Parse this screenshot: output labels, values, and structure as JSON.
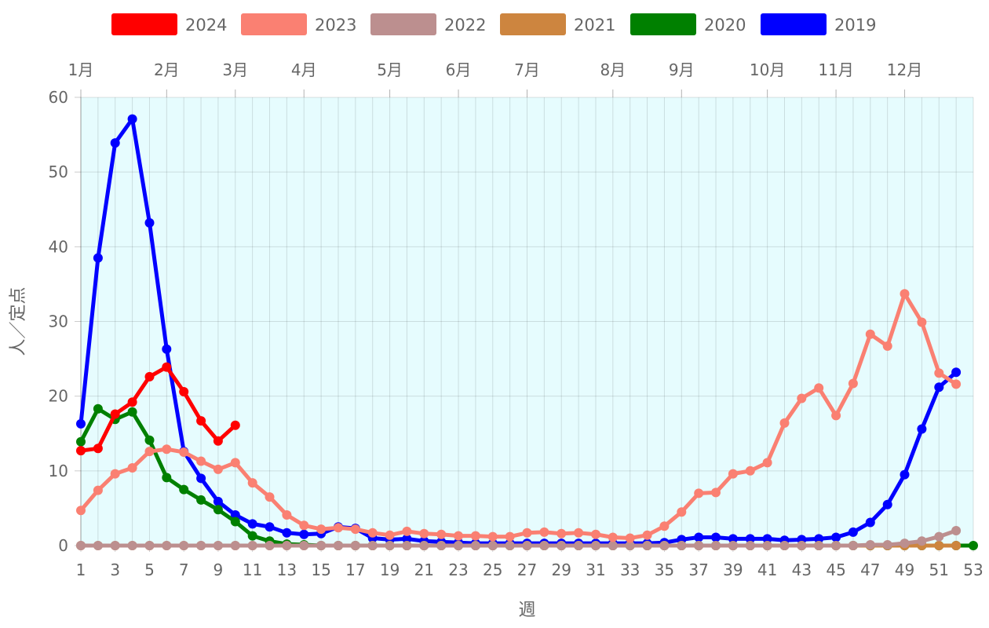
{
  "chart_data": {
    "type": "line",
    "xlabel": "週",
    "ylabel": "人／定点",
    "xlim": [
      1,
      53
    ],
    "ylim": [
      0,
      60
    ],
    "x_ticks": [
      1,
      3,
      5,
      7,
      9,
      11,
      13,
      15,
      17,
      19,
      21,
      23,
      25,
      27,
      29,
      31,
      33,
      35,
      37,
      39,
      41,
      43,
      45,
      47,
      49,
      51,
      53
    ],
    "y_ticks": [
      0,
      10,
      20,
      30,
      40,
      50,
      60
    ],
    "grid": true,
    "plot_background": "#e6fcfe",
    "legend_position": "top",
    "months": [
      {
        "label": "1月",
        "week": 1
      },
      {
        "label": "2月",
        "week": 6
      },
      {
        "label": "3月",
        "week": 10
      },
      {
        "label": "4月",
        "week": 14
      },
      {
        "label": "5月",
        "week": 19
      },
      {
        "label": "6月",
        "week": 23
      },
      {
        "label": "7月",
        "week": 27
      },
      {
        "label": "8月",
        "week": 32
      },
      {
        "label": "9月",
        "week": 36
      },
      {
        "label": "10月",
        "week": 41
      },
      {
        "label": "11月",
        "week": 45
      },
      {
        "label": "12月",
        "week": 49
      }
    ],
    "series": [
      {
        "name": "2024",
        "color": "#ff0000",
        "x": [
          1,
          2,
          3,
          4,
          5,
          6,
          7,
          8,
          9,
          10
        ],
        "values": [
          12.7,
          13.0,
          17.6,
          19.2,
          22.6,
          23.9,
          20.6,
          16.7,
          14.0,
          16.1
        ]
      },
      {
        "name": "2023",
        "color": "#fa8072",
        "x": [
          1,
          2,
          3,
          4,
          5,
          6,
          7,
          8,
          9,
          10,
          11,
          12,
          13,
          14,
          15,
          16,
          17,
          18,
          19,
          20,
          21,
          22,
          23,
          24,
          25,
          26,
          27,
          28,
          29,
          30,
          31,
          32,
          33,
          34,
          35,
          36,
          37,
          38,
          39,
          40,
          41,
          42,
          43,
          44,
          45,
          46,
          47,
          48,
          49,
          50,
          51,
          52
        ],
        "values": [
          4.7,
          7.4,
          9.6,
          10.4,
          12.6,
          12.9,
          12.5,
          11.3,
          10.2,
          11.1,
          8.4,
          6.5,
          4.1,
          2.7,
          2.2,
          2.4,
          2.2,
          1.7,
          1.4,
          1.9,
          1.6,
          1.5,
          1.3,
          1.3,
          1.2,
          1.2,
          1.7,
          1.8,
          1.6,
          1.7,
          1.5,
          1.1,
          1.0,
          1.4,
          2.6,
          4.5,
          7.0,
          7.1,
          9.6,
          10.0,
          11.1,
          16.4,
          19.7,
          21.1,
          17.4,
          21.7,
          28.3,
          26.7,
          33.7,
          29.9,
          23.1,
          21.6
        ]
      },
      {
        "name": "2022",
        "color": "#bc8f8f",
        "x": [
          1,
          2,
          3,
          4,
          5,
          6,
          7,
          8,
          9,
          10,
          11,
          12,
          13,
          14,
          15,
          16,
          17,
          18,
          19,
          20,
          21,
          22,
          23,
          24,
          25,
          26,
          27,
          28,
          29,
          30,
          31,
          32,
          33,
          34,
          35,
          36,
          37,
          38,
          39,
          40,
          41,
          42,
          43,
          44,
          45,
          46,
          47,
          48,
          49,
          50,
          51,
          52
        ],
        "values": [
          0,
          0,
          0,
          0,
          0,
          0,
          0,
          0,
          0,
          0,
          0,
          0,
          0,
          0,
          0,
          0,
          0,
          0,
          0,
          0,
          0,
          0,
          0,
          0,
          0,
          0,
          0,
          0,
          0,
          0,
          0,
          0,
          0,
          0,
          0,
          0,
          0,
          0,
          0,
          0,
          0,
          0,
          0,
          0,
          0,
          0,
          0.1,
          0.1,
          0.3,
          0.6,
          1.2,
          2.0
        ]
      },
      {
        "name": "2021",
        "color": "#cd853f",
        "x": [
          1,
          2,
          3,
          4,
          5,
          6,
          7,
          8,
          9,
          10,
          11,
          12,
          13,
          14,
          15,
          16,
          17,
          18,
          19,
          20,
          21,
          22,
          23,
          24,
          25,
          26,
          27,
          28,
          29,
          30,
          31,
          32,
          33,
          34,
          35,
          36,
          37,
          38,
          39,
          40,
          41,
          42,
          43,
          44,
          45,
          46,
          47,
          48,
          49,
          50,
          51,
          52
        ],
        "values": [
          0,
          0,
          0,
          0,
          0,
          0,
          0,
          0,
          0,
          0,
          0,
          0,
          0,
          0,
          0,
          0,
          0,
          0,
          0,
          0,
          0,
          0,
          0,
          0,
          0,
          0,
          0,
          0,
          0,
          0,
          0,
          0,
          0,
          0,
          0,
          0,
          0,
          0,
          0,
          0,
          0,
          0,
          0,
          0,
          0,
          0,
          0,
          0,
          0,
          0,
          0,
          0
        ]
      },
      {
        "name": "2020",
        "color": "#008000",
        "x": [
          1,
          2,
          3,
          4,
          5,
          6,
          7,
          8,
          9,
          10,
          11,
          12,
          13,
          14,
          15,
          16,
          17,
          18,
          19,
          20,
          21,
          22,
          23,
          24,
          25,
          26,
          27,
          28,
          29,
          30,
          31,
          32,
          33,
          34,
          35,
          36,
          37,
          38,
          39,
          40,
          41,
          42,
          43,
          44,
          45,
          46,
          47,
          48,
          49,
          50,
          51,
          52,
          53
        ],
        "values": [
          13.9,
          18.3,
          16.9,
          17.9,
          14.1,
          9.1,
          7.5,
          6.1,
          4.8,
          3.2,
          1.3,
          0.6,
          0.2,
          0.1,
          0,
          0,
          0,
          0,
          0,
          0,
          0,
          0,
          0,
          0,
          0,
          0,
          0,
          0,
          0,
          0,
          0,
          0,
          0,
          0,
          0,
          0,
          0,
          0,
          0,
          0,
          0,
          0,
          0,
          0,
          0,
          0,
          0,
          0,
          0,
          0,
          0,
          0,
          0
        ]
      },
      {
        "name": "2019",
        "color": "#0000ff",
        "x": [
          1,
          2,
          3,
          4,
          5,
          6,
          7,
          8,
          9,
          10,
          11,
          12,
          13,
          14,
          15,
          16,
          17,
          18,
          19,
          20,
          21,
          22,
          23,
          24,
          25,
          26,
          27,
          28,
          29,
          30,
          31,
          32,
          33,
          34,
          35,
          36,
          37,
          38,
          39,
          40,
          41,
          42,
          43,
          44,
          45,
          46,
          47,
          48,
          49,
          50,
          51,
          52
        ],
        "values": [
          16.3,
          38.5,
          53.9,
          57.1,
          43.2,
          26.3,
          12.6,
          9.0,
          5.9,
          4.1,
          2.9,
          2.5,
          1.7,
          1.5,
          1.6,
          2.5,
          2.3,
          1.0,
          0.8,
          0.9,
          0.6,
          0.5,
          0.4,
          0.3,
          0.3,
          0.3,
          0.3,
          0.3,
          0.3,
          0.3,
          0.3,
          0.3,
          0.3,
          0.3,
          0.4,
          0.8,
          1.1,
          1.1,
          0.9,
          0.9,
          0.9,
          0.7,
          0.8,
          0.9,
          1.1,
          1.8,
          3.1,
          5.5,
          9.5,
          15.6,
          21.2,
          23.2
        ]
      }
    ]
  }
}
